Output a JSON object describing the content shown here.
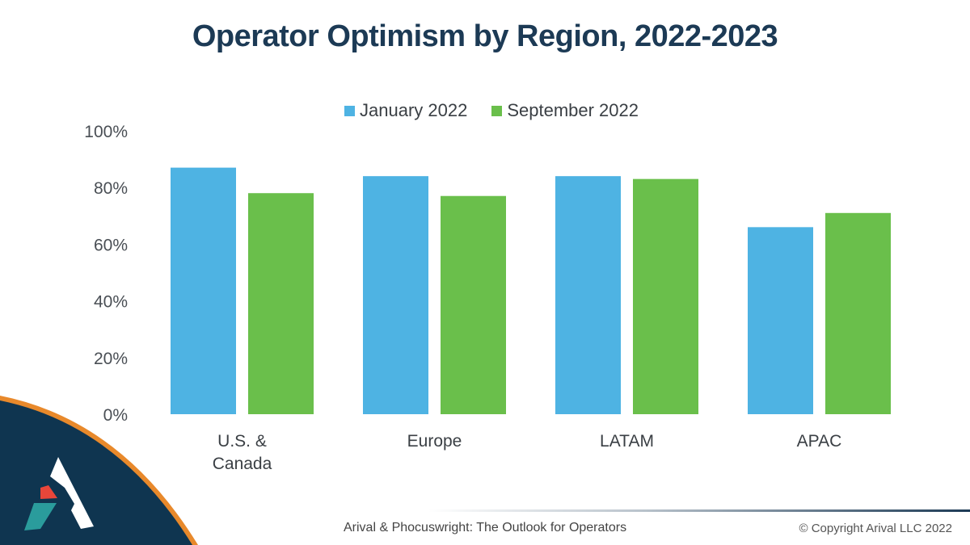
{
  "chart_data": {
    "type": "bar",
    "title": "Operator Optimism by Region, 2022-2023",
    "categories": [
      [
        "U.S. &",
        "Canada"
      ],
      [
        "Europe"
      ],
      [
        "LATAM"
      ],
      [
        "APAC"
      ]
    ],
    "series": [
      {
        "name": "January 2022",
        "color": "#4eb3e3",
        "values": [
          87,
          84,
          84,
          66
        ]
      },
      {
        "name": "September 2022",
        "color": "#6abf4b",
        "values": [
          78,
          77,
          83,
          71
        ]
      }
    ],
    "xlabel": "",
    "ylabel": "",
    "ylim": [
      0,
      100
    ],
    "yticks": [
      0,
      20,
      40,
      60,
      80,
      100
    ],
    "ytick_format": "percent",
    "grid": false,
    "legend_position": "top-center"
  },
  "footer": {
    "source": "Arival & Phocuswright: The Outlook for Operators",
    "copyright": "© Copyright Arival LLC 2022"
  },
  "brand": {
    "logo_icon": "arival-a-logo-icon",
    "navy": "#0f3550",
    "orange": "#e8892b",
    "red": "#e8463a",
    "teal": "#2a9c9c"
  }
}
